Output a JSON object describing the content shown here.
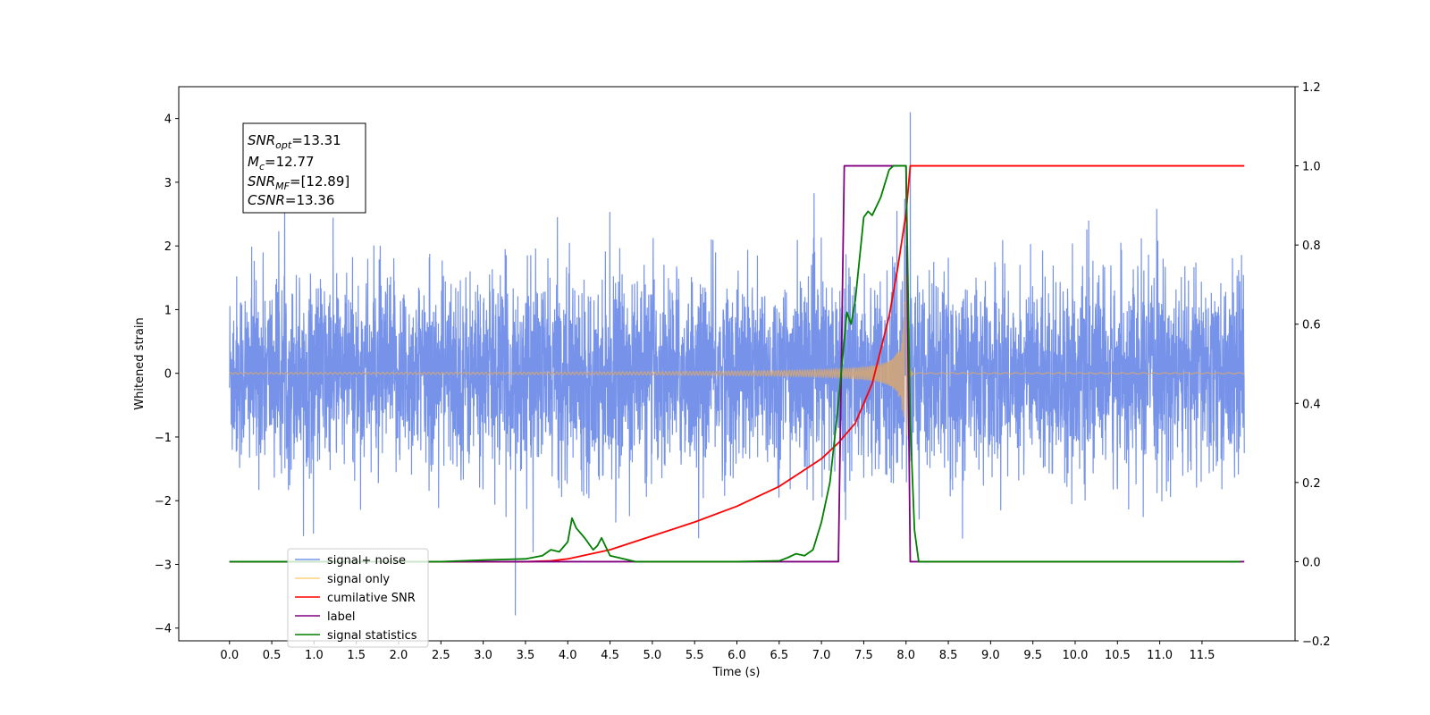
{
  "chart_data": {
    "type": "line",
    "xlabel": "Time (s)",
    "ylabel": "Whitened strain",
    "xlim": [
      -0.6,
      12.6
    ],
    "ylim": [
      -4.2,
      4.5
    ],
    "ylim_right": [
      -0.2,
      1.2
    ],
    "x_ticks": [
      0.0,
      0.5,
      1.0,
      1.5,
      2.0,
      2.5,
      3.0,
      3.5,
      4.0,
      4.5,
      5.0,
      5.5,
      6.0,
      6.5,
      7.0,
      7.5,
      8.0,
      8.5,
      9.0,
      9.5,
      10.0,
      10.5,
      11.0,
      11.5
    ],
    "x_tick_labels": [
      "0.0",
      "0.5",
      "1.0",
      "1.5",
      "2.0",
      "2.5",
      "3.0",
      "3.5",
      "4.0",
      "4.5",
      "5.0",
      "5.5",
      "6.0",
      "6.5",
      "7.0",
      "7.5",
      "8.0",
      "8.5",
      "9.0",
      "9.5",
      "10.0",
      "10.5",
      "11.0",
      "11.5"
    ],
    "y_ticks": [
      -4,
      -3,
      -2,
      -1,
      0,
      1,
      2,
      3,
      4
    ],
    "y_tick_labels": [
      "−4",
      "−3",
      "−2",
      "−1",
      "0",
      "1",
      "2",
      "3",
      "4"
    ],
    "y_right_ticks": [
      -0.2,
      0.0,
      0.2,
      0.4,
      0.6,
      0.8,
      1.0,
      1.2
    ],
    "y_right_tick_labels": [
      "−0.2",
      "0.0",
      "0.2",
      "0.4",
      "0.6",
      "0.8",
      "1.0",
      "1.2"
    ],
    "grid": false,
    "legend_position": "bottom-left",
    "series": [
      {
        "name": "signal+ noise",
        "color": "#4169e1",
        "axis": "left",
        "description_values": {
          "x_range": [
            0.0,
            12.0
          ],
          "noise_std": 0.75,
          "max_spike": {
            "x": 8.05,
            "y": 4.1
          },
          "min_spike": {
            "x": 3.38,
            "y": -3.8
          }
        }
      },
      {
        "name": "signal only",
        "color": "#d2a679",
        "axis": "left",
        "description_values": {
          "x_range": [
            0.0,
            12.0
          ],
          "chirp_peak_time": 8.0,
          "peak_amplitude": 1.55
        }
      },
      {
        "name": "cumilative SNR",
        "color": "#ff0000",
        "axis": "right",
        "x": [
          0.0,
          3.5,
          3.8,
          4.0,
          4.5,
          5.0,
          5.5,
          6.0,
          6.5,
          7.0,
          7.2,
          7.4,
          7.6,
          7.8,
          7.9,
          8.0,
          8.05,
          12.0
        ],
        "y": [
          0.0,
          0.0,
          0.002,
          0.007,
          0.03,
          0.065,
          0.1,
          0.14,
          0.19,
          0.26,
          0.3,
          0.35,
          0.45,
          0.62,
          0.74,
          0.88,
          1.0,
          1.0
        ]
      },
      {
        "name": "label",
        "color": "#800080",
        "axis": "right",
        "x": [
          0.0,
          7.2,
          7.27,
          8.0,
          8.05,
          12.0
        ],
        "y": [
          0.0,
          0.0,
          1.0,
          1.0,
          0.0,
          0.0
        ]
      },
      {
        "name": "signal statistics",
        "color": "#008000",
        "axis": "right",
        "x": [
          0.0,
          2.5,
          3.0,
          3.5,
          3.7,
          3.8,
          3.9,
          4.0,
          4.05,
          4.1,
          4.2,
          4.3,
          4.35,
          4.4,
          4.5,
          4.8,
          6.0,
          6.5,
          6.6,
          6.7,
          6.8,
          6.9,
          7.0,
          7.1,
          7.2,
          7.3,
          7.35,
          7.4,
          7.5,
          7.55,
          7.6,
          7.7,
          7.8,
          7.85,
          7.9,
          8.0,
          8.05,
          8.1,
          8.15,
          11.95
        ],
        "y": [
          0.0,
          0.0,
          0.004,
          0.007,
          0.015,
          0.03,
          0.025,
          0.05,
          0.11,
          0.085,
          0.06,
          0.03,
          0.04,
          0.06,
          0.015,
          0.0,
          0.0,
          0.002,
          0.01,
          0.02,
          0.015,
          0.03,
          0.1,
          0.2,
          0.4,
          0.63,
          0.6,
          0.66,
          0.87,
          0.885,
          0.875,
          0.92,
          0.99,
          1.0,
          1.0,
          1.0,
          0.35,
          0.08,
          0.0,
          0.0
        ]
      }
    ],
    "annotation": {
      "snr_opt": "=13.31",
      "mc": "=12.77",
      "snr_mf": "=[12.89]",
      "csnr": "=13.36"
    }
  }
}
